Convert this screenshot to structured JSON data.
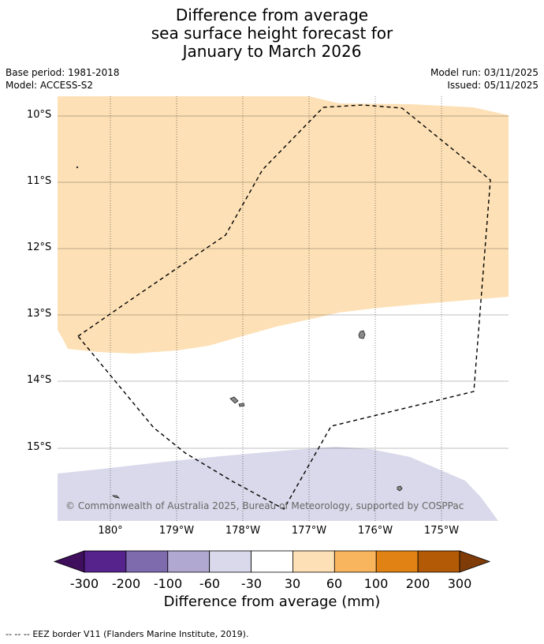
{
  "header": {
    "title_line1": "Difference from average",
    "title_line2": "sea surface height forecast for",
    "title_line3": "January to March 2026",
    "base_period": "Base period: 1981-2018",
    "model": "Model: ACCESS-S2",
    "model_run": "Model run: 03/11/2025",
    "issued": "Issued: 05/11/2025"
  },
  "map": {
    "lat_labels": [
      "10°S",
      "11°S",
      "12°S",
      "13°S",
      "14°S",
      "15°S"
    ],
    "lon_labels": [
      "180°",
      "179°W",
      "178°W",
      "177°W",
      "176°W",
      "175°W"
    ],
    "copyright": "© Commonwealth of Australia 2025, Bureau of Meteorology, supported by COSPPac",
    "region_anomaly_bins": {
      "north": "30 to 60",
      "south": "-60 to -30",
      "centre": "-30 to 30"
    }
  },
  "colorbar": {
    "ticks": [
      "-300",
      "-200",
      "-100",
      "-60",
      "-30",
      "30",
      "60",
      "100",
      "200",
      "300"
    ],
    "colors": [
      "#3f0e5c",
      "#55238b",
      "#7e6bae",
      "#b1a8d1",
      "#d9d9eb",
      "#ffffff",
      "#fde0b5",
      "#f9b55e",
      "#e08214",
      "#b25a06",
      "#7f3b08"
    ],
    "label": "Difference from average (mm)"
  },
  "footer": {
    "legend_symbol": "--  --  --",
    "legend_text": "EEZ border V11 (Flanders Marine Institute, 2019)."
  }
}
